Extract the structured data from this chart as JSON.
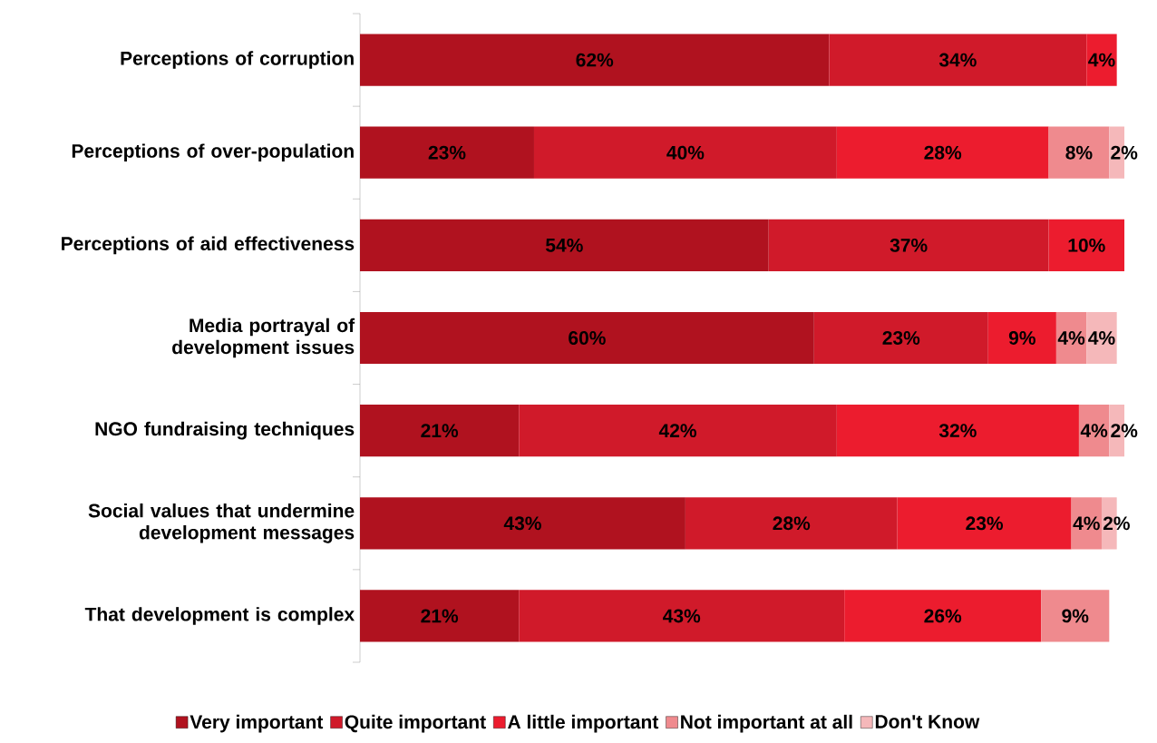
{
  "chart_data": {
    "type": "bar",
    "orientation": "horizontal",
    "stacked": true,
    "legend": "bottom",
    "categories": [
      "Perceptions of corruption",
      "Perceptions of over-population",
      "Perceptions of aid effectiveness",
      "Media portrayal of development issues",
      "NGO fundraising techniques",
      "Social values that undermine development messages",
      "That development is complex"
    ],
    "series": [
      {
        "name": "Very important",
        "color": "#b0121f",
        "values": [
          62,
          23,
          54,
          60,
          21,
          43,
          21
        ],
        "value_labels": [
          "62%",
          "23%",
          "54%",
          "60%",
          "21%",
          "43%",
          "21%"
        ]
      },
      {
        "name": "Quite important",
        "color": "#d01a2a",
        "values": [
          34,
          40,
          37,
          23,
          42,
          28,
          43
        ],
        "value_labels": [
          "34%",
          "40%",
          "37%",
          "23%",
          "42%",
          "28%",
          "43%"
        ]
      },
      {
        "name": "A little important",
        "color": "#ec1c2e",
        "values": [
          4,
          28,
          10,
          9,
          32,
          23,
          26
        ],
        "value_labels": [
          "4%",
          "28%",
          "10%",
          "9%",
          "32%",
          "23%",
          "26%"
        ]
      },
      {
        "name": "Not important at all",
        "color": "#ef8a8e",
        "values": [
          null,
          8,
          null,
          4,
          4,
          4,
          9
        ],
        "value_labels": [
          null,
          "8%",
          null,
          "4%",
          "4%",
          "4%",
          "9%"
        ]
      },
      {
        "name": "Don't Know",
        "color": "#f5b8ba",
        "values": [
          null,
          2,
          null,
          4,
          2,
          2,
          null
        ],
        "value_labels": [
          null,
          "2%",
          null,
          "4%",
          "2%",
          "2%",
          null
        ]
      }
    ]
  }
}
